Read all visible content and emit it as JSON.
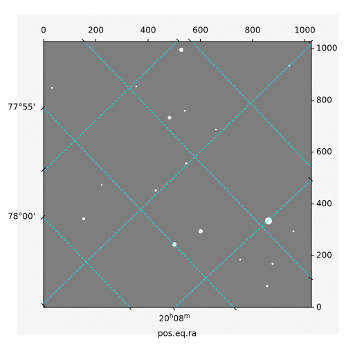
{
  "chart_data": {
    "type": "image",
    "xlabel": "pos.eq.ra",
    "xlim": [
      0,
      1025
    ],
    "ylim": [
      0,
      1027
    ],
    "xticks": [
      0,
      200,
      400,
      600,
      800,
      1000
    ],
    "yticks": [
      0,
      200,
      400,
      600,
      800,
      1000
    ],
    "dec_tick_labels": [
      "77°55'",
      "78°00'"
    ],
    "ra_tick_labels": [
      "20h08m"
    ]
  }
}
